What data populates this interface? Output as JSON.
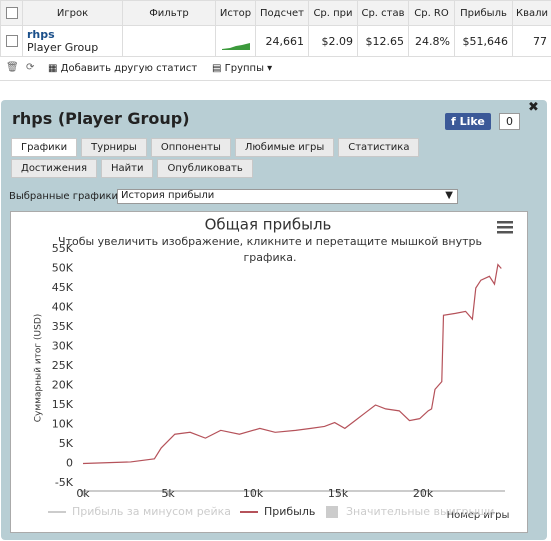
{
  "table": {
    "headers": [
      "Игрок",
      "Фильтр",
      "Истор",
      "Подсчет",
      "Ср. при",
      "Ср. став",
      "Ср. RO",
      "Прибыль",
      "Квали"
    ],
    "row": {
      "player": "rhps",
      "group": "Player Group",
      "cells": [
        "24,661",
        "$2.09",
        "$12.65",
        "24.8%",
        "$51,646",
        "77"
      ]
    }
  },
  "toolbar": {
    "add": "Добавить другую статист",
    "groups": "Группы"
  },
  "panel": {
    "title": "rhps (Player Group)",
    "like": "Like",
    "like_count": "0",
    "tabs": [
      "Графики",
      "Турниры",
      "Оппоненты",
      "Любимые игры",
      "Статистика",
      "Достижения",
      "Найти",
      "Опубликовать"
    ],
    "select_label": "Выбранные графики:",
    "select_value": "История прибыли"
  },
  "chart_data": {
    "type": "line",
    "title": "Общая прибыль",
    "subtitle": "Чтобы увеличить изображение, кликните и перетащите мышкой внутрь графика.",
    "y_label": "Суммарный итог (USD)",
    "x_label": "Номер игры",
    "x": [
      0,
      2800,
      4200,
      4600,
      5400,
      6300,
      7200,
      8100,
      9200,
      10400,
      11300,
      12500,
      13400,
      14200,
      14800,
      15400,
      16000,
      16600,
      17200,
      17800,
      18600,
      19200,
      19800,
      20300,
      20500,
      20700,
      20900,
      21100,
      21200,
      21900,
      22500,
      22900,
      23100,
      23400,
      23900,
      24200,
      24400,
      24600
    ],
    "series": [
      {
        "name": "Прибыль",
        "color": "#b5525a",
        "values": [
          0,
          400,
          1200,
          4000,
          7500,
          8000,
          6500,
          8500,
          7500,
          9000,
          8000,
          8500,
          9000,
          9500,
          10500,
          9000,
          11000,
          13000,
          15000,
          14000,
          13500,
          11000,
          11500,
          13500,
          14000,
          19000,
          20000,
          21000,
          38000,
          38500,
          39000,
          37000,
          45000,
          47000,
          48000,
          46000,
          51000,
          50000
        ]
      }
    ],
    "hidden_series": [
      {
        "name": "Прибыль за минусом рейка",
        "color": "#cccccc"
      },
      {
        "name": "Значительные выигрыши",
        "color": "#cccccc"
      }
    ],
    "xlim": [
      0,
      24700
    ],
    "ylim": [
      -5000,
      55000
    ],
    "xticks": [
      {
        "value": 0,
        "label": "0k"
      },
      {
        "value": 5000,
        "label": "5k"
      },
      {
        "value": 10000,
        "label": "10k"
      },
      {
        "value": 15000,
        "label": "15k"
      },
      {
        "value": 20000,
        "label": "20k"
      }
    ],
    "yticks": [
      {
        "value": -5000,
        "label": "-5K"
      },
      0,
      {
        "value": 5000,
        "label": "5K"
      },
      {
        "value": 10000,
        "label": "10K"
      },
      {
        "value": 15000,
        "label": "15K"
      },
      {
        "value": 20000,
        "label": "20K"
      },
      {
        "value": 25000,
        "label": "25K"
      },
      {
        "value": 30000,
        "label": "30K"
      },
      {
        "value": 35000,
        "label": "35K"
      },
      {
        "value": 40000,
        "label": "40K"
      },
      {
        "value": 45000,
        "label": "45K"
      },
      {
        "value": 50000,
        "label": "50K"
      },
      {
        "value": 55000,
        "label": "55K"
      }
    ],
    "grid": false
  }
}
